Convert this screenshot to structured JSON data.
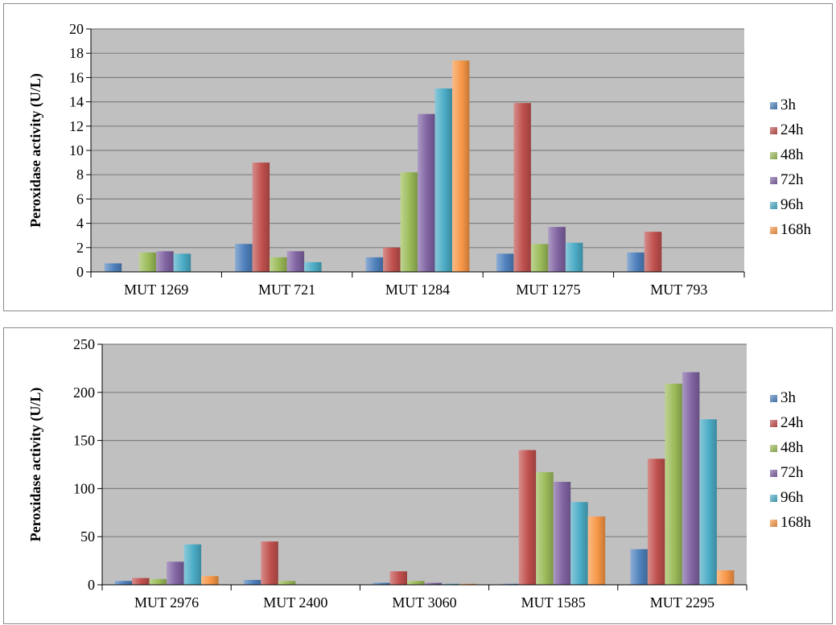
{
  "colors": {
    "plot_bg": "#c0c0c0",
    "grid": "#7f7f7f",
    "axis": "#000000",
    "series": [
      "#4f81bd",
      "#c0504d",
      "#9bbb59",
      "#8064a2",
      "#4bacc6",
      "#f79646"
    ]
  },
  "chart_data": [
    {
      "type": "bar",
      "ylabel": "Peroxidase activity (U/L)",
      "xlabel": "",
      "ylim": [
        0,
        20
      ],
      "ytick_step": 2,
      "grid": true,
      "legend_position": "right",
      "categories": [
        "MUT 1269",
        "MUT 721",
        "MUT 1284",
        "MUT 1275",
        "MUT 793"
      ],
      "series": [
        {
          "name": "3h",
          "values": [
            0.7,
            2.3,
            1.2,
            1.5,
            1.6
          ]
        },
        {
          "name": "24h",
          "values": [
            0,
            9.0,
            2.0,
            13.9,
            3.3
          ]
        },
        {
          "name": "48h",
          "values": [
            1.6,
            1.2,
            8.2,
            2.3,
            0
          ]
        },
        {
          "name": "72h",
          "values": [
            1.7,
            1.7,
            13.0,
            3.7,
            0
          ]
        },
        {
          "name": "96h",
          "values": [
            1.5,
            0.8,
            15.1,
            2.4,
            0
          ]
        },
        {
          "name": "168h",
          "values": [
            0,
            0,
            17.4,
            0,
            0
          ]
        }
      ]
    },
    {
      "type": "bar",
      "ylabel": "Peroxidase activity (U/L)",
      "xlabel": "",
      "ylim": [
        0,
        250
      ],
      "ytick_step": 50,
      "grid": true,
      "legend_position": "right",
      "categories": [
        "MUT 2976",
        "MUT 2400",
        "MUT 3060",
        "MUT 1585",
        "MUT 2295"
      ],
      "series": [
        {
          "name": "3h",
          "values": [
            4,
            5,
            2,
            1,
            37
          ]
        },
        {
          "name": "24h",
          "values": [
            7,
            45,
            14,
            140,
            131
          ]
        },
        {
          "name": "48h",
          "values": [
            6,
            4,
            4,
            117,
            209
          ]
        },
        {
          "name": "72h",
          "values": [
            24,
            0,
            2,
            107,
            221
          ]
        },
        {
          "name": "96h",
          "values": [
            42,
            0,
            1,
            86,
            172
          ]
        },
        {
          "name": "168h",
          "values": [
            9,
            0,
            1,
            71,
            15
          ]
        }
      ]
    }
  ]
}
